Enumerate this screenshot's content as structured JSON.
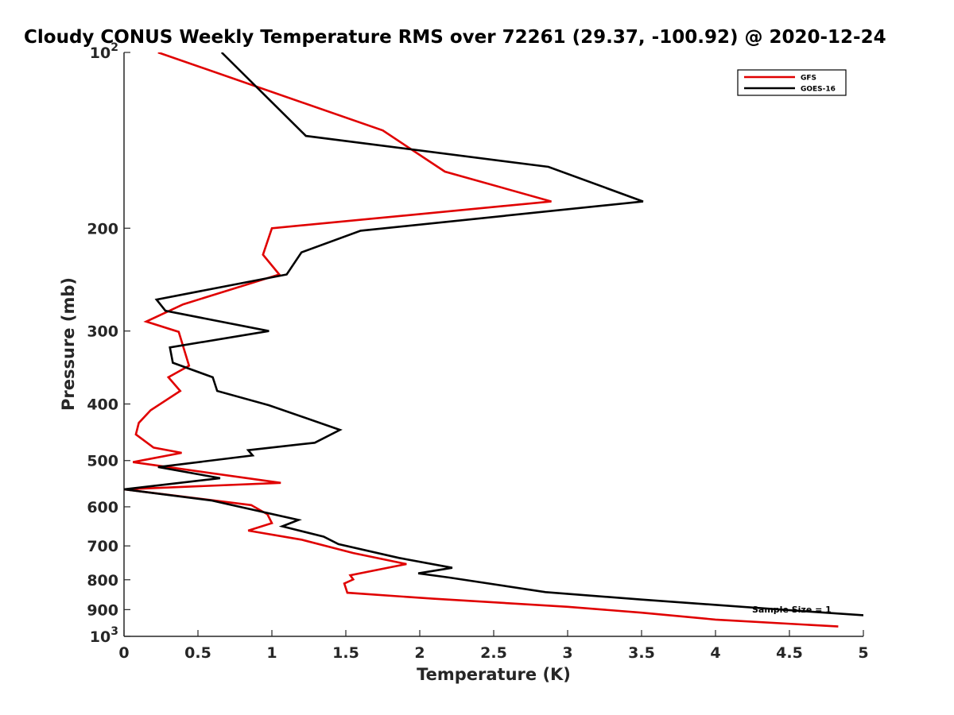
{
  "chart_data": {
    "type": "line",
    "title": "Cloudy CONUS Weekly Temperature RMS over 72261 (29.37, -100.92) @ 2020-12-24",
    "xlabel": "Temperature (K)",
    "ylabel": "Pressure (mb)",
    "xlim": [
      0,
      5
    ],
    "ylim": [
      100,
      1000
    ],
    "yscale": "log",
    "y_reversed": true,
    "grid": false,
    "legend_position": "top-right",
    "x_ticks": [
      0,
      0.5,
      1,
      1.5,
      2,
      2.5,
      3,
      3.5,
      4,
      4.5,
      5
    ],
    "x_tick_labels": [
      "0",
      "0.5",
      "1",
      "1.5",
      "2",
      "2.5",
      "3",
      "3.5",
      "4",
      "4.5",
      "5"
    ],
    "y_ticks": [
      100,
      200,
      300,
      400,
      500,
      600,
      700,
      800,
      900,
      1000
    ],
    "y_tick_labels": [
      {
        "base": "10",
        "exp": "2"
      },
      {
        "base": "200",
        "exp": ""
      },
      {
        "base": "300",
        "exp": ""
      },
      {
        "base": "400",
        "exp": ""
      },
      {
        "base": "500",
        "exp": ""
      },
      {
        "base": "600",
        "exp": ""
      },
      {
        "base": "700",
        "exp": ""
      },
      {
        "base": "800",
        "exp": ""
      },
      {
        "base": "900",
        "exp": ""
      },
      {
        "base": "10",
        "exp": "3"
      }
    ],
    "annotation": "Sample Size = 1",
    "series": [
      {
        "name": "GFS",
        "color": "#e00000",
        "points": [
          [
            0.23,
            100
          ],
          [
            1.75,
            136
          ],
          [
            2.17,
            160
          ],
          [
            2.89,
            180
          ],
          [
            1.0,
            200
          ],
          [
            0.94,
            222
          ],
          [
            1.05,
            240
          ],
          [
            0.4,
            270
          ],
          [
            0.15,
            289
          ],
          [
            0.37,
            301
          ],
          [
            0.44,
            344
          ],
          [
            0.3,
            360
          ],
          [
            0.38,
            380
          ],
          [
            0.18,
            410
          ],
          [
            0.1,
            431
          ],
          [
            0.08,
            451
          ],
          [
            0.2,
            475
          ],
          [
            0.39,
            485
          ],
          [
            0.06,
            503
          ],
          [
            1.06,
            546
          ],
          [
            0.0,
            560
          ],
          [
            0.86,
            596
          ],
          [
            0.97,
            618
          ],
          [
            1.0,
            640
          ],
          [
            0.84,
            659
          ],
          [
            1.2,
            683
          ],
          [
            1.55,
            720
          ],
          [
            1.91,
            752
          ],
          [
            1.53,
            786
          ],
          [
            1.55,
            799
          ],
          [
            1.49,
            812
          ],
          [
            1.51,
            842
          ],
          [
            2.09,
            862
          ],
          [
            3.0,
            890
          ],
          [
            3.5,
            911
          ],
          [
            4.0,
            936
          ],
          [
            4.83,
            962
          ]
        ]
      },
      {
        "name": "GOES-16",
        "color": "#000000",
        "points": [
          [
            0.66,
            100
          ],
          [
            1.23,
            139
          ],
          [
            2.87,
            157
          ],
          [
            3.51,
            180
          ],
          [
            1.6,
            202
          ],
          [
            1.2,
            220
          ],
          [
            1.1,
            240
          ],
          [
            0.22,
            265
          ],
          [
            0.28,
            277
          ],
          [
            0.98,
            300
          ],
          [
            0.31,
            320
          ],
          [
            0.33,
            340
          ],
          [
            0.6,
            360
          ],
          [
            0.63,
            380
          ],
          [
            0.98,
            402
          ],
          [
            1.46,
            443
          ],
          [
            1.29,
            466
          ],
          [
            0.84,
            480
          ],
          [
            0.87,
            490
          ],
          [
            0.23,
            513
          ],
          [
            0.65,
            536
          ],
          [
            0.0,
            560
          ],
          [
            0.59,
            585
          ],
          [
            1.18,
            632
          ],
          [
            1.07,
            648
          ],
          [
            1.35,
            675
          ],
          [
            1.45,
            695
          ],
          [
            1.86,
            734
          ],
          [
            2.22,
            763
          ],
          [
            1.99,
            780
          ],
          [
            2.2,
            793
          ],
          [
            2.85,
            840
          ],
          [
            3.5,
            865
          ],
          [
            4.5,
            902
          ],
          [
            5.0,
            920
          ]
        ]
      }
    ]
  }
}
